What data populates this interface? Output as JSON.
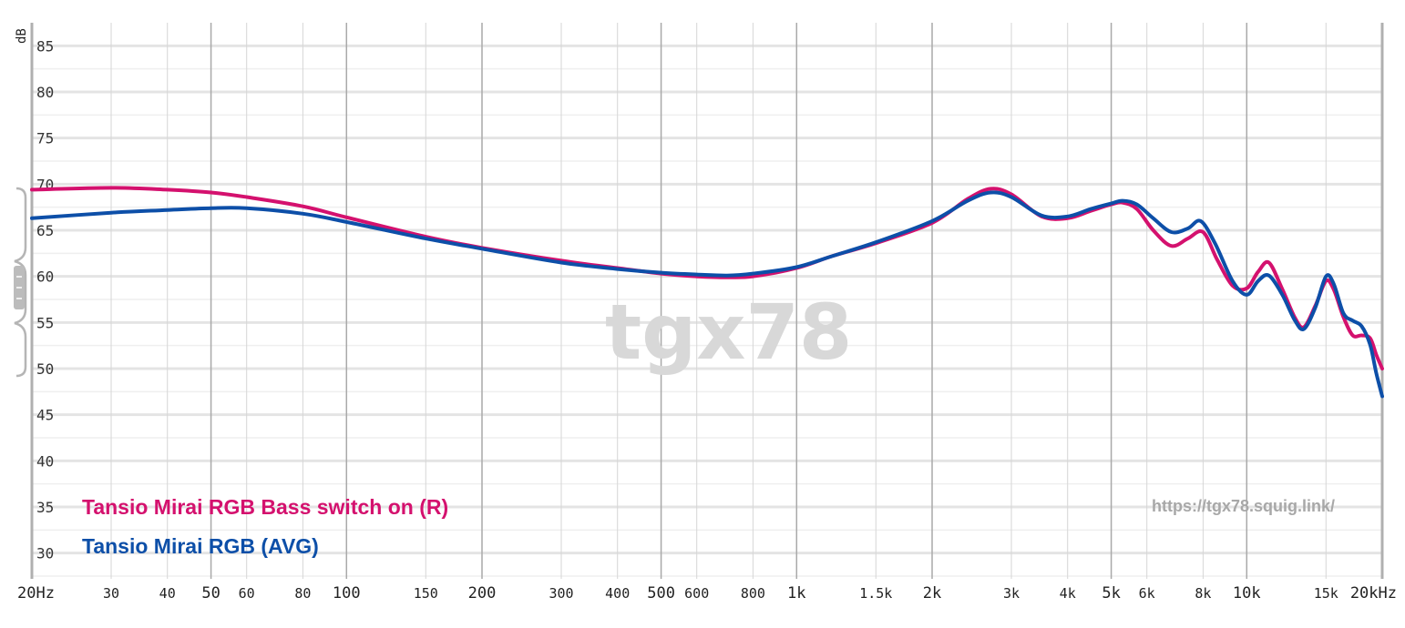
{
  "chart_data": {
    "type": "line",
    "x_scale": "log",
    "xlim": [
      20,
      20000
    ],
    "ylim": [
      27.5,
      87.5
    ],
    "ylabel": "dB",
    "grid": true,
    "y_ticks": [
      85,
      80,
      75,
      70,
      65,
      60,
      55,
      50,
      45,
      40,
      35,
      30
    ],
    "x_ticks": [
      {
        "f": 20,
        "label": "20Hz",
        "major": true
      },
      {
        "f": 30,
        "label": "30",
        "major": false
      },
      {
        "f": 40,
        "label": "40",
        "major": false
      },
      {
        "f": 50,
        "label": "50",
        "major": true
      },
      {
        "f": 60,
        "label": "60",
        "major": false
      },
      {
        "f": 80,
        "label": "80",
        "major": false
      },
      {
        "f": 100,
        "label": "100",
        "major": true
      },
      {
        "f": 150,
        "label": "150",
        "major": false
      },
      {
        "f": 200,
        "label": "200",
        "major": true
      },
      {
        "f": 300,
        "label": "300",
        "major": false
      },
      {
        "f": 400,
        "label": "400",
        "major": false
      },
      {
        "f": 500,
        "label": "500",
        "major": true
      },
      {
        "f": 600,
        "label": "600",
        "major": false
      },
      {
        "f": 800,
        "label": "800",
        "major": false
      },
      {
        "f": 1000,
        "label": "1k",
        "major": true
      },
      {
        "f": 1500,
        "label": "1.5k",
        "major": false
      },
      {
        "f": 2000,
        "label": "2k",
        "major": true
      },
      {
        "f": 3000,
        "label": "3k",
        "major": false
      },
      {
        "f": 4000,
        "label": "4k",
        "major": false
      },
      {
        "f": 5000,
        "label": "5k",
        "major": true
      },
      {
        "f": 6000,
        "label": "6k",
        "major": false
      },
      {
        "f": 8000,
        "label": "8k",
        "major": false
      },
      {
        "f": 10000,
        "label": "10k",
        "major": true
      },
      {
        "f": 15000,
        "label": "15k",
        "major": false
      },
      {
        "f": 20000,
        "label": "20kHz",
        "major": true
      }
    ],
    "series": [
      {
        "name": "Tansio Mirai RGB Bass switch on (R)",
        "color": "#d4116e",
        "points": [
          [
            20,
            69.4
          ],
          [
            30,
            69.6
          ],
          [
            40,
            69.4
          ],
          [
            50,
            69.1
          ],
          [
            60,
            68.6
          ],
          [
            80,
            67.6
          ],
          [
            100,
            66.4
          ],
          [
            150,
            64.3
          ],
          [
            200,
            63.1
          ],
          [
            300,
            61.7
          ],
          [
            400,
            60.9
          ],
          [
            500,
            60.3
          ],
          [
            600,
            60.0
          ],
          [
            700,
            59.9
          ],
          [
            800,
            60.0
          ],
          [
            1000,
            60.9
          ],
          [
            1200,
            62.2
          ],
          [
            1500,
            63.6
          ],
          [
            2000,
            65.8
          ],
          [
            2400,
            68.4
          ],
          [
            2700,
            69.5
          ],
          [
            3000,
            68.9
          ],
          [
            3500,
            66.5
          ],
          [
            4000,
            66.3
          ],
          [
            4500,
            67.1
          ],
          [
            5000,
            67.8
          ],
          [
            5300,
            68.0
          ],
          [
            5700,
            67.3
          ],
          [
            6200,
            65.0
          ],
          [
            6800,
            63.3
          ],
          [
            7400,
            64.1
          ],
          [
            8000,
            64.8
          ],
          [
            8600,
            61.8
          ],
          [
            9300,
            59.0
          ],
          [
            10000,
            58.7
          ],
          [
            10600,
            60.5
          ],
          [
            11200,
            61.5
          ],
          [
            12000,
            58.6
          ],
          [
            12800,
            55.5
          ],
          [
            13400,
            54.5
          ],
          [
            14200,
            56.8
          ],
          [
            15000,
            59.5
          ],
          [
            15600,
            58.6
          ],
          [
            16400,
            55.6
          ],
          [
            17200,
            53.6
          ],
          [
            18000,
            53.6
          ],
          [
            18800,
            53.3
          ],
          [
            19400,
            51.5
          ],
          [
            20000,
            50.0
          ]
        ]
      },
      {
        "name": "Tansio Mirai RGB (AVG)",
        "color": "#0d4fa8",
        "points": [
          [
            20,
            66.3
          ],
          [
            30,
            66.9
          ],
          [
            40,
            67.2
          ],
          [
            50,
            67.4
          ],
          [
            60,
            67.4
          ],
          [
            80,
            66.8
          ],
          [
            100,
            65.9
          ],
          [
            150,
            64.1
          ],
          [
            200,
            63.0
          ],
          [
            300,
            61.5
          ],
          [
            400,
            60.8
          ],
          [
            500,
            60.4
          ],
          [
            600,
            60.2
          ],
          [
            700,
            60.1
          ],
          [
            800,
            60.3
          ],
          [
            1000,
            61.0
          ],
          [
            1200,
            62.2
          ],
          [
            1500,
            63.7
          ],
          [
            2000,
            66.0
          ],
          [
            2400,
            68.2
          ],
          [
            2700,
            69.1
          ],
          [
            3000,
            68.6
          ],
          [
            3500,
            66.6
          ],
          [
            4000,
            66.5
          ],
          [
            4500,
            67.3
          ],
          [
            5000,
            67.9
          ],
          [
            5300,
            68.2
          ],
          [
            5700,
            67.8
          ],
          [
            6200,
            66.3
          ],
          [
            6800,
            64.8
          ],
          [
            7400,
            65.2
          ],
          [
            7900,
            66.0
          ],
          [
            8500,
            63.6
          ],
          [
            9300,
            59.5
          ],
          [
            10000,
            58.0
          ],
          [
            10600,
            59.5
          ],
          [
            11200,
            60.1
          ],
          [
            12000,
            58.0
          ],
          [
            12800,
            55.2
          ],
          [
            13400,
            54.3
          ],
          [
            14200,
            56.6
          ],
          [
            15000,
            60.0
          ],
          [
            15600,
            59.2
          ],
          [
            16400,
            56.0
          ],
          [
            17200,
            55.2
          ],
          [
            18000,
            54.6
          ],
          [
            18800,
            52.6
          ],
          [
            19400,
            49.5
          ],
          [
            20000,
            47.0
          ]
        ]
      }
    ],
    "legend": [
      {
        "label": "Tansio Mirai RGB Bass switch on (R)",
        "color": "#d4116e"
      },
      {
        "label": "Tansio Mirai RGB (AVG)",
        "color": "#0d4fa8"
      }
    ],
    "legend_position": "bottom-left",
    "watermark": "tgx78",
    "source_url": "https://tgx78.squig.link/"
  }
}
